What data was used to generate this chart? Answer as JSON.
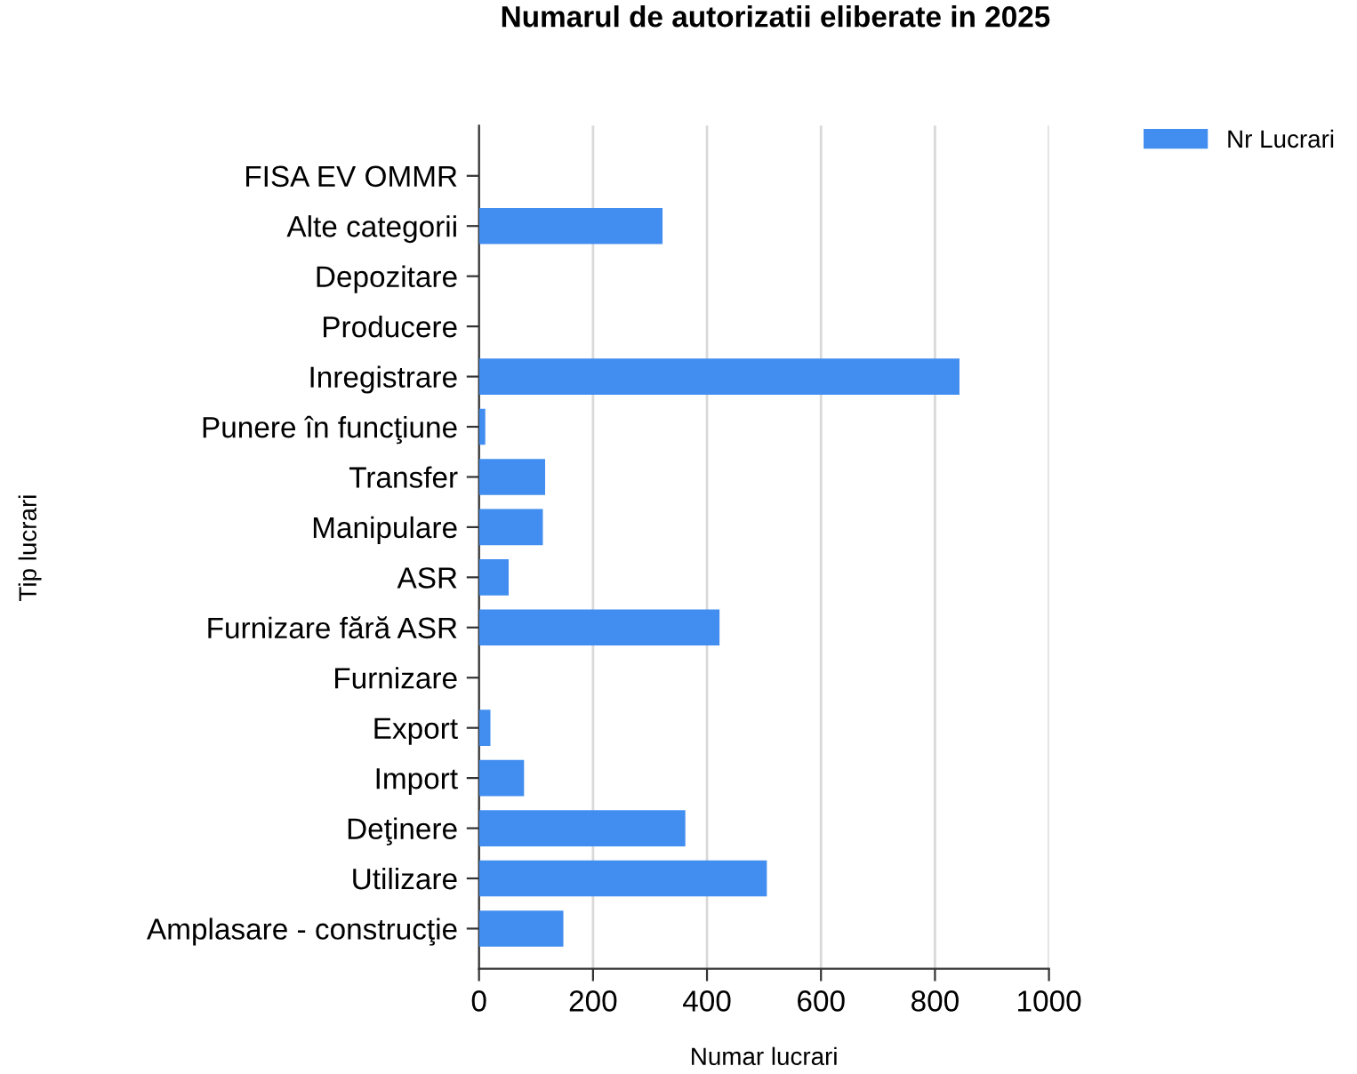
{
  "chart_data": {
    "type": "bar",
    "orientation": "horizontal",
    "title": "Numarul de autorizatii eliberate in 2025",
    "xlabel": "Numar lucrari",
    "ylabel": "Tip lucrari",
    "categories": [
      "FISA EV OMMR",
      "Alte categorii",
      "Depozitare",
      "Producere",
      "Inregistrare",
      "Punere în funcţiune",
      "Transfer",
      "Manipulare",
      "ASR",
      "Furnizare fără ASR",
      "Furnizare",
      "Export",
      "Import",
      "Deţinere",
      "Utilizare",
      "Amplasare - construcţie"
    ],
    "series": [
      {
        "name": "Nr Lucrari",
        "color": "#428ef0",
        "values": [
          0,
          322,
          0,
          0,
          843,
          11,
          116,
          112,
          52,
          422,
          0,
          20,
          79,
          362,
          505,
          148
        ]
      }
    ],
    "xlim": [
      0,
      1000
    ],
    "xticks": [
      0,
      200,
      400,
      600,
      800,
      1000
    ],
    "grid": "x",
    "legend": "top right"
  }
}
